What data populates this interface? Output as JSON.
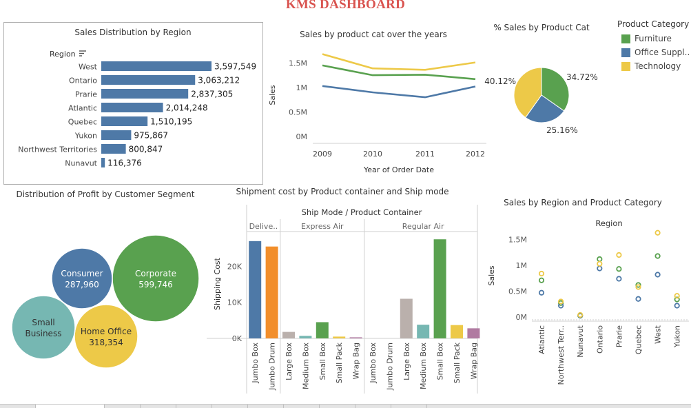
{
  "dashboard": {
    "title": "KMS DASHBOARD"
  },
  "colors": {
    "furniture": "#59a14f",
    "office": "#4e79a7",
    "technology": "#edc948",
    "bar": "#4e79a7",
    "title": "#d9534f"
  },
  "legend": {
    "title": "Product Category",
    "items": [
      {
        "label": "Furniture",
        "color": "#59a14f"
      },
      {
        "label": "Office Suppl..",
        "color": "#4e79a7"
      },
      {
        "label": "Technology",
        "color": "#edc948"
      }
    ]
  },
  "chart_data": [
    {
      "id": "region-bar",
      "type": "bar",
      "orientation": "horizontal",
      "title": "Sales Distribution by Region",
      "category_header": "Region",
      "categories": [
        "West",
        "Ontario",
        "Prarie",
        "Atlantic",
        "Quebec",
        "Yukon",
        "Northwest Territories",
        "Nunavut"
      ],
      "values": [
        3597549,
        3063212,
        2837305,
        2014248,
        1510195,
        975867,
        800847,
        116376
      ],
      "labels": [
        "3,597,549",
        "3,063,212",
        "2,837,305",
        "2,014,248",
        "1,510,195",
        "975,867",
        "800,847",
        "116,376"
      ]
    },
    {
      "id": "cat-line",
      "type": "line",
      "title": "Sales by product cat over the years",
      "xlabel": "Year of Order Date",
      "ylabel": "Sales",
      "x": [
        "2009",
        "2010",
        "2011",
        "2012"
      ],
      "yticks": [
        "0M",
        "0.5M",
        "1M",
        "1.5M"
      ],
      "ylim": [
        0,
        1800000
      ],
      "series": [
        {
          "name": "Furniture",
          "color": "#59a14f",
          "values": [
            1450000,
            1250000,
            1260000,
            1170000
          ]
        },
        {
          "name": "Office Suppl..",
          "color": "#4e79a7",
          "values": [
            1030000,
            900000,
            800000,
            1020000
          ]
        },
        {
          "name": "Technology",
          "color": "#edc948",
          "values": [
            1680000,
            1390000,
            1360000,
            1510000
          ]
        }
      ]
    },
    {
      "id": "cat-pie",
      "type": "pie",
      "title": "% Sales by Product Cat",
      "slices": [
        {
          "name": "Furniture",
          "value": 34.72,
          "label": "34.72%",
          "color": "#59a14f"
        },
        {
          "name": "Office Suppl..",
          "value": 25.16,
          "label": "25.16%",
          "color": "#4e79a7"
        },
        {
          "name": "Technology",
          "value": 40.12,
          "label": "40.12%",
          "color": "#edc948"
        }
      ]
    },
    {
      "id": "segment-bubble",
      "type": "bubble",
      "title": "Distribution of Profit by Customer Segment",
      "bubbles": [
        {
          "name": "Corporate",
          "value": "599,746",
          "color": "#59a14f"
        },
        {
          "name": "Consumer",
          "value": "287,960",
          "color": "#4e79a7"
        },
        {
          "name": "Home Office",
          "value": "318,354",
          "color": "#edc948"
        },
        {
          "name": "Small Business",
          "value": "",
          "color": "#76b7b2"
        }
      ]
    },
    {
      "id": "ship-bar",
      "type": "bar",
      "title": "Shipment cost by Product container and Ship mode",
      "header": "Ship Mode  /  Product Container",
      "ylabel": "Shipping Cost",
      "yticks": [
        "0K",
        "10K",
        "20K"
      ],
      "ylim": [
        0,
        28500
      ],
      "groups": [
        {
          "name": "Delive..",
          "bars": [
            {
              "container": "Jumbo Box",
              "value": 27000,
              "color": "#4e79a7"
            },
            {
              "container": "Jumbo Drum",
              "value": 25500,
              "color": "#f28e2b"
            }
          ]
        },
        {
          "name": "Express Air",
          "bars": [
            {
              "container": "Large Box",
              "value": 1800,
              "color": "#bab0ac"
            },
            {
              "container": "Medium Box",
              "value": 700,
              "color": "#76b7b2"
            },
            {
              "container": "Small Box",
              "value": 4500,
              "color": "#59a14f"
            },
            {
              "container": "Small Pack",
              "value": 500,
              "color": "#edc948"
            },
            {
              "container": "Wrap Bag",
              "value": 300,
              "color": "#b07aa1"
            }
          ]
        },
        {
          "name": "Regular Air",
          "bars": [
            {
              "container": "Jumbo Box",
              "value": 0,
              "color": "#4e79a7"
            },
            {
              "container": "Jumbo Drum",
              "value": 0,
              "color": "#f28e2b"
            },
            {
              "container": "Large Box",
              "value": 11000,
              "color": "#bab0ac"
            },
            {
              "container": "Medium Box",
              "value": 3800,
              "color": "#76b7b2"
            },
            {
              "container": "Small Box",
              "value": 27500,
              "color": "#59a14f"
            },
            {
              "container": "Small Pack",
              "value": 3700,
              "color": "#edc948"
            },
            {
              "container": "Wrap Bag",
              "value": 2800,
              "color": "#b07aa1"
            }
          ]
        }
      ]
    },
    {
      "id": "region-scatter",
      "type": "scatter",
      "title": "Sales by Region and Product Category",
      "header": "Region",
      "ylabel": "Sales",
      "yticks": [
        "0M",
        "0.5M",
        "1M",
        "1.5M"
      ],
      "ylim": [
        0,
        1600000
      ],
      "categories": [
        "Atlantic",
        "Northwest Terr..",
        "Nunavut",
        "Ontario",
        "Prarie",
        "Quebec",
        "West",
        "Yukon"
      ],
      "series": [
        {
          "name": "Furniture",
          "color": "#59a14f",
          "values": [
            710000,
            270000,
            25000,
            1120000,
            930000,
            620000,
            1180000,
            340000
          ]
        },
        {
          "name": "Office Suppl..",
          "color": "#4e79a7",
          "values": [
            470000,
            220000,
            30000,
            940000,
            740000,
            350000,
            820000,
            220000
          ]
        },
        {
          "name": "Technology",
          "color": "#edc948",
          "values": [
            840000,
            300000,
            40000,
            1030000,
            1200000,
            580000,
            1630000,
            410000
          ]
        }
      ]
    }
  ]
}
